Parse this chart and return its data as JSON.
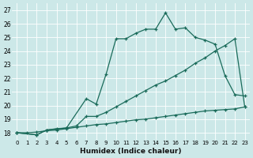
{
  "xlabel": "Humidex (Indice chaleur)",
  "bg_color": "#cce8e8",
  "line_color": "#1a6b5a",
  "grid_color": "#aacccc",
  "xlim": [
    -0.5,
    23.5
  ],
  "ylim": [
    17.5,
    27.5
  ],
  "yticks": [
    18,
    19,
    20,
    21,
    22,
    23,
    24,
    25,
    26,
    27
  ],
  "xticks": [
    0,
    1,
    2,
    3,
    4,
    5,
    6,
    7,
    8,
    9,
    10,
    11,
    12,
    13,
    14,
    15,
    16,
    17,
    18,
    19,
    20,
    21,
    22,
    23
  ],
  "line_bottom_x": [
    0,
    1,
    2,
    3,
    4,
    5,
    6,
    7,
    8,
    9,
    10,
    11,
    12,
    13,
    14,
    15,
    16,
    17,
    18,
    19,
    20,
    21,
    22,
    23
  ],
  "line_bottom_y": [
    18.0,
    18.0,
    18.05,
    18.15,
    18.2,
    18.3,
    18.4,
    18.5,
    18.6,
    18.65,
    18.75,
    18.85,
    18.95,
    19.0,
    19.1,
    19.2,
    19.3,
    19.4,
    19.5,
    19.6,
    19.65,
    19.7,
    19.75,
    19.9
  ],
  "line_top_x": [
    0,
    2,
    3,
    4,
    5,
    7,
    8,
    9,
    10,
    11,
    12,
    13,
    14,
    15,
    16,
    17,
    18,
    19,
    20,
    21,
    22,
    23
  ],
  "line_top_y": [
    18.0,
    17.85,
    18.2,
    18.3,
    18.35,
    20.5,
    20.1,
    22.3,
    24.9,
    24.9,
    25.3,
    25.6,
    25.6,
    26.8,
    25.6,
    25.7,
    25.0,
    24.8,
    24.5,
    22.2,
    20.8,
    20.7
  ],
  "line_mid_x": [
    0,
    2,
    3,
    5,
    6,
    7,
    8,
    9,
    10,
    11,
    12,
    13,
    14,
    15,
    16,
    17,
    18,
    19,
    20,
    21,
    22,
    23
  ],
  "line_mid_y": [
    18.0,
    17.85,
    18.2,
    18.35,
    18.5,
    19.2,
    19.2,
    19.5,
    19.9,
    20.3,
    20.7,
    21.1,
    21.5,
    21.8,
    22.2,
    22.6,
    23.1,
    23.5,
    24.0,
    24.4,
    24.9,
    19.9
  ]
}
